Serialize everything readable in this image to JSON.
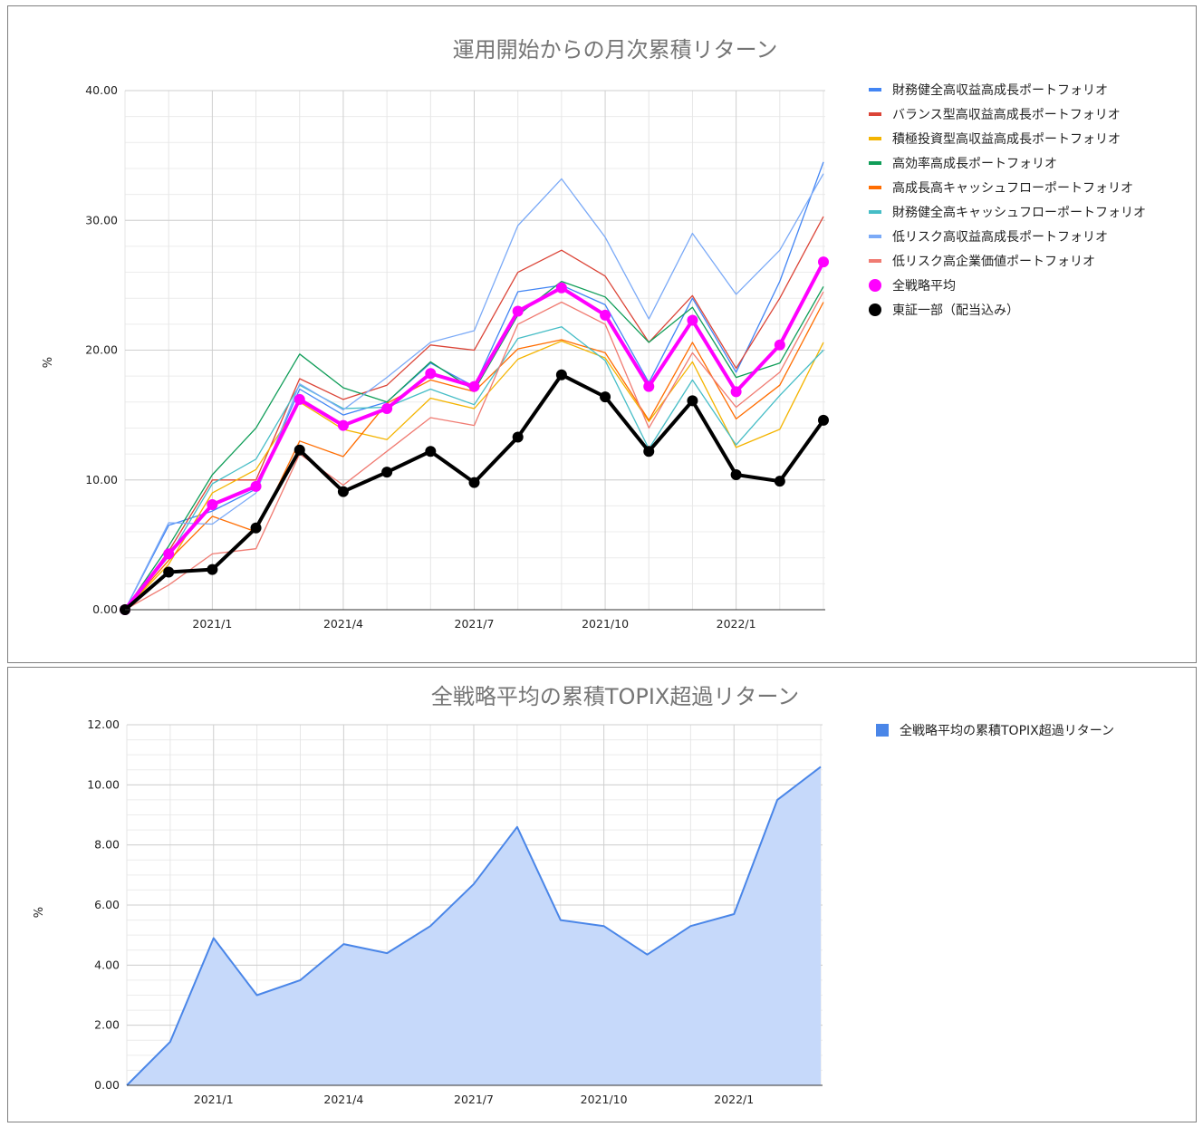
{
  "chart_data": [
    {
      "type": "line",
      "title": "運用開始からの月次累積リターン",
      "ylabel": "%",
      "ylim": [
        0,
        40
      ],
      "yticks": [
        "0.00",
        "10.00",
        "20.00",
        "30.00",
        "40.00"
      ],
      "xticks": [
        "2021/1",
        "2021/4",
        "2021/7",
        "2021/10",
        "2022/1"
      ],
      "x": [
        "2020/11",
        "2020/12",
        "2021/1",
        "2021/2",
        "2021/3",
        "2021/4",
        "2021/5",
        "2021/6",
        "2021/7",
        "2021/8",
        "2021/9",
        "2021/10",
        "2021/11",
        "2021/12",
        "2022/1",
        "2022/2",
        "2022/3"
      ],
      "grid": true,
      "legend_position": "right",
      "series": [
        {
          "name": "財務健全高収益高成長ポートフォリオ",
          "color": "#4285f4",
          "width": 1.3,
          "values": [
            0,
            6.5,
            7.6,
            9.3,
            17.0,
            15.0,
            16.0,
            19.0,
            17.2,
            24.5,
            25.0,
            23.5,
            17.5,
            24.0,
            18.3,
            25.3,
            34.5
          ]
        },
        {
          "name": "バランス型高収益高成長ポートフォリオ",
          "color": "#db4437",
          "width": 1.3,
          "values": [
            0,
            4.5,
            10.0,
            10.0,
            17.8,
            16.2,
            17.3,
            20.4,
            20.0,
            26.0,
            27.7,
            25.7,
            20.6,
            24.2,
            18.6,
            24.0,
            30.3
          ]
        },
        {
          "name": "積極投資型高収益高成長ポートフォリオ",
          "color": "#f4b400",
          "width": 1.3,
          "values": [
            0,
            3.5,
            9.0,
            10.8,
            16.0,
            13.9,
            13.1,
            16.3,
            15.5,
            19.3,
            20.7,
            19.4,
            14.5,
            19.1,
            12.5,
            13.9,
            20.6
          ]
        },
        {
          "name": "高効率高成長ポートフォリオ",
          "color": "#0f9d58",
          "width": 1.3,
          "values": [
            0,
            4.9,
            10.4,
            14.0,
            19.7,
            17.1,
            16.0,
            19.1,
            16.9,
            22.7,
            25.3,
            24.1,
            20.6,
            23.3,
            17.9,
            19.0,
            24.9
          ]
        },
        {
          "name": "高成長高キャッシュフローポートフォリオ",
          "color": "#ff6d01",
          "width": 1.3,
          "values": [
            0,
            3.8,
            7.2,
            6.0,
            13.0,
            11.8,
            15.9,
            17.7,
            16.8,
            20.1,
            20.8,
            19.8,
            14.6,
            20.6,
            14.7,
            17.3,
            23.7
          ]
        },
        {
          "name": "財務健全高キャッシュフローポートフォリオ",
          "color": "#46bdc6",
          "width": 1.3,
          "values": [
            0,
            4.1,
            9.7,
            11.6,
            17.3,
            15.5,
            15.6,
            17.0,
            15.8,
            20.9,
            21.8,
            19.2,
            12.4,
            17.7,
            12.7,
            16.5,
            20.0
          ]
        },
        {
          "name": "低リスク高収益高成長ポートフォリオ",
          "color": "#7baaf7",
          "width": 1.3,
          "values": [
            0,
            6.7,
            6.6,
            9.0,
            17.4,
            15.4,
            17.9,
            20.6,
            21.5,
            29.6,
            33.2,
            28.7,
            22.4,
            29.0,
            24.3,
            27.7,
            33.6
          ]
        },
        {
          "name": "低リスク高企業価値ポートフォリオ",
          "color": "#f07b72",
          "width": 1.3,
          "values": [
            0,
            1.9,
            4.3,
            4.7,
            12.0,
            9.6,
            12.2,
            14.8,
            14.2,
            22.0,
            23.7,
            22.0,
            14.0,
            19.8,
            15.6,
            18.3,
            24.5
          ]
        },
        {
          "name": "全戦略平均",
          "color": "#ff00ff",
          "width": 4,
          "marker": true,
          "values": [
            0,
            4.3,
            8.1,
            9.5,
            16.2,
            14.2,
            15.5,
            18.2,
            17.2,
            23.0,
            24.8,
            22.7,
            17.2,
            22.3,
            16.8,
            20.4,
            26.8
          ]
        },
        {
          "name": "東証一部（配当込み）",
          "color": "#000000",
          "width": 4,
          "marker": true,
          "values": [
            0,
            2.9,
            3.1,
            6.3,
            12.3,
            9.1,
            10.6,
            12.2,
            9.8,
            13.3,
            18.1,
            16.4,
            12.2,
            16.1,
            10.4,
            9.9,
            14.6
          ]
        }
      ]
    },
    {
      "type": "area",
      "title": "全戦略平均の累積TOPIX超過リターン",
      "ylabel": "%",
      "ylim": [
        0,
        12
      ],
      "yticks": [
        "0.00",
        "2.00",
        "4.00",
        "6.00",
        "8.00",
        "10.00",
        "12.00"
      ],
      "xticks": [
        "2021/1",
        "2021/4",
        "2021/7",
        "2021/10",
        "2022/1"
      ],
      "x": [
        "2020/11",
        "2020/12",
        "2021/1",
        "2021/2",
        "2021/3",
        "2021/4",
        "2021/5",
        "2021/6",
        "2021/7",
        "2021/8",
        "2021/9",
        "2021/10",
        "2021/11",
        "2021/12",
        "2022/1",
        "2022/2",
        "2022/3"
      ],
      "grid": true,
      "legend_position": "right",
      "series": [
        {
          "name": "全戦略平均の累積TOPIX超過リターン",
          "color": "#4a86e8",
          "fill": "#c6d9fa",
          "values": [
            0,
            1.45,
            4.9,
            3.0,
            3.5,
            4.7,
            4.4,
            5.3,
            6.7,
            8.6,
            5.5,
            5.3,
            4.35,
            5.3,
            5.7,
            9.5,
            10.6
          ]
        }
      ]
    }
  ]
}
